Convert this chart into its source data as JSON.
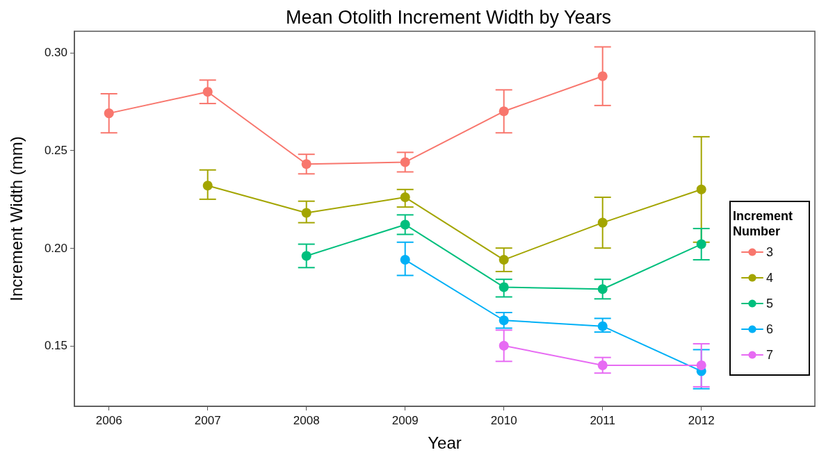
{
  "chart_data": {
    "type": "line",
    "title": "Mean Otolith Increment Width by Years",
    "xlabel": "Year",
    "ylabel": "Increment Width (mm)",
    "legend_title": "Increment Number",
    "series": [
      {
        "name": "3",
        "color": "#f8766d",
        "x": [
          2006,
          2007,
          2008,
          2009,
          2010,
          2011
        ],
        "values": [
          0.269,
          0.28,
          0.243,
          0.244,
          0.27,
          0.288
        ],
        "errors": [
          [
            0.259,
            0.279
          ],
          [
            0.274,
            0.286
          ],
          [
            0.238,
            0.248
          ],
          [
            0.239,
            0.249
          ],
          [
            0.259,
            0.281
          ],
          [
            0.273,
            0.303
          ]
        ]
      },
      {
        "name": "4",
        "color": "#a3a500",
        "x": [
          2007,
          2008,
          2009,
          2010,
          2011,
          2012
        ],
        "values": [
          0.232,
          0.218,
          0.226,
          0.194,
          0.213,
          0.23
        ],
        "errors": [
          [
            0.225,
            0.24
          ],
          [
            0.213,
            0.224
          ],
          [
            0.221,
            0.23
          ],
          [
            0.188,
            0.2
          ],
          [
            0.2,
            0.226
          ],
          [
            0.203,
            0.257
          ]
        ]
      },
      {
        "name": "5",
        "color": "#00bf7d",
        "x": [
          2008,
          2009,
          2010,
          2011,
          2012
        ],
        "values": [
          0.196,
          0.212,
          0.18,
          0.179,
          0.202
        ],
        "errors": [
          [
            0.19,
            0.202
          ],
          [
            0.207,
            0.217
          ],
          [
            0.175,
            0.184
          ],
          [
            0.174,
            0.184
          ],
          [
            0.194,
            0.21
          ]
        ]
      },
      {
        "name": "6",
        "color": "#00b0f6",
        "x": [
          2009,
          2010,
          2011,
          2012
        ],
        "values": [
          0.194,
          0.163,
          0.16,
          0.137
        ],
        "errors": [
          [
            0.186,
            0.203
          ],
          [
            0.159,
            0.167
          ],
          [
            0.157,
            0.164
          ],
          [
            0.128,
            0.148
          ]
        ]
      },
      {
        "name": "7",
        "color": "#e76bf3",
        "x": [
          2010,
          2011,
          2012
        ],
        "values": [
          0.15,
          0.14,
          0.14
        ],
        "errors": [
          [
            0.142,
            0.158
          ],
          [
            0.136,
            0.144
          ],
          [
            0.129,
            0.151
          ]
        ]
      }
    ],
    "xlim": [
      2005.65,
      2013.15
    ],
    "xticks": [
      2006,
      2007,
      2008,
      2009,
      2010,
      2011,
      2012
    ],
    "ylim": [
      0.119,
      0.311
    ],
    "yticks": [
      {
        "value": 0.15,
        "label": "0.15"
      },
      {
        "value": 0.2,
        "label": "0.20"
      },
      {
        "value": 0.25,
        "label": "0.25"
      },
      {
        "value": 0.3,
        "label": "0.30"
      }
    ],
    "grid": false,
    "legend": "right",
    "marker": "circle",
    "line_style": "solid"
  }
}
